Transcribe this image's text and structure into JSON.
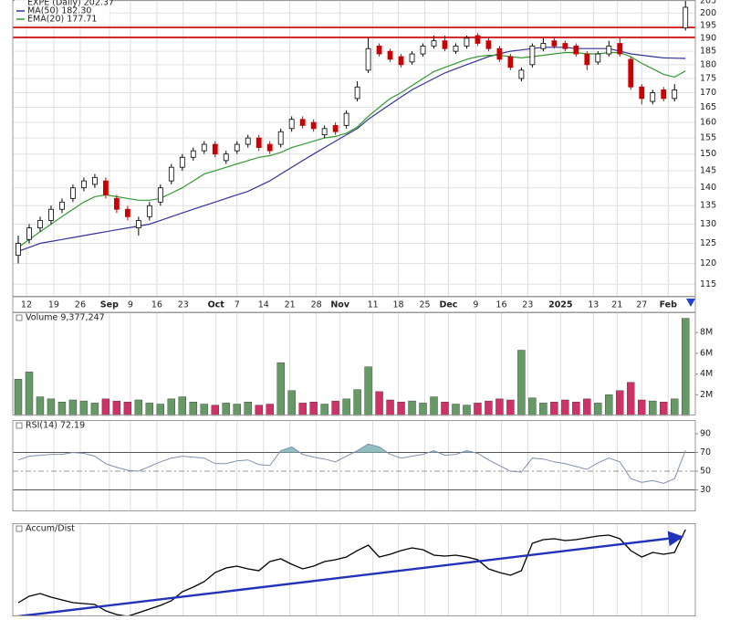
{
  "chart_data": [
    {
      "type": "candlestick",
      "title": "EXPE (Daily) 202.37",
      "xlim": [
        -0.5,
        61.9
      ],
      "xticks": [
        {
          "value": 0.75,
          "label": "12"
        },
        {
          "value": 3.25,
          "label": "19"
        },
        {
          "value": 5.67,
          "label": "26"
        },
        {
          "value": 8.33,
          "label": "Sep"
        },
        {
          "value": 10.25,
          "label": "9"
        },
        {
          "value": 12.67,
          "label": "16"
        },
        {
          "value": 15.08,
          "label": "23"
        },
        {
          "value": 18.08,
          "label": "Oct"
        },
        {
          "value": 20,
          "label": "7"
        },
        {
          "value": 22.42,
          "label": "14"
        },
        {
          "value": 24.83,
          "label": "21"
        },
        {
          "value": 27.25,
          "label": "28"
        },
        {
          "value": 29.42,
          "label": "Nov"
        },
        {
          "value": 32.42,
          "label": "11"
        },
        {
          "value": 34.75,
          "label": "18"
        },
        {
          "value": 37.17,
          "label": "25"
        },
        {
          "value": 39.33,
          "label": "Dec"
        },
        {
          "value": 41.83,
          "label": "9"
        },
        {
          "value": 44.17,
          "label": "16"
        },
        {
          "value": 46.58,
          "label": "23"
        },
        {
          "value": 49.58,
          "label": "2025"
        },
        {
          "value": 52.58,
          "label": "13"
        },
        {
          "value": 54.75,
          "label": "21"
        },
        {
          "value": 57,
          "label": "27"
        },
        {
          "value": 59.42,
          "label": "Feb"
        }
      ],
      "ylim": [
        112.1,
        205.4
      ],
      "log": true,
      "yticks": [
        115,
        120,
        125,
        130,
        135,
        140,
        145,
        150,
        155,
        160,
        165,
        170,
        175,
        180,
        185,
        190,
        195,
        200,
        205
      ],
      "grid": true,
      "up_color": "#000000",
      "down_color": "#cc0000",
      "open": [
        122,
        126,
        129,
        131,
        134,
        137,
        140,
        141,
        142,
        137,
        134,
        129,
        132,
        136,
        142,
        146,
        149,
        151,
        153,
        148,
        151,
        153,
        155,
        153,
        153,
        158,
        161,
        160,
        156,
        159,
        159,
        168,
        178,
        187,
        185,
        183,
        181,
        184,
        187,
        189,
        185,
        187,
        191,
        189,
        186,
        183,
        175,
        180,
        186,
        189,
        188,
        187,
        184,
        181,
        184,
        188,
        182,
        172,
        167,
        171,
        168,
        194
      ],
      "high": [
        127,
        130,
        132,
        135,
        137,
        141,
        143,
        144,
        143,
        138,
        135,
        132,
        136,
        141,
        147,
        150,
        152,
        154,
        154,
        151,
        154,
        156,
        156,
        154,
        158,
        162,
        162,
        161,
        159,
        160,
        164,
        174,
        190,
        188,
        186,
        184,
        185,
        188,
        191,
        191,
        188,
        191,
        192,
        190,
        187,
        184,
        179,
        188,
        190,
        190,
        189,
        188,
        185,
        185,
        189,
        190,
        183,
        173,
        171,
        172,
        173,
        205
      ],
      "low": [
        120,
        125,
        128,
        130,
        133,
        136,
        139,
        140,
        137,
        133,
        131,
        127,
        131,
        135,
        141,
        145,
        148,
        150,
        149,
        147,
        150,
        152,
        151,
        150,
        152,
        157,
        158,
        157,
        155,
        156,
        158,
        167,
        177,
        183,
        181,
        179,
        180,
        183,
        186,
        185,
        184,
        186,
        187,
        185,
        181,
        178,
        174,
        179,
        185,
        186,
        185,
        183,
        178,
        180,
        183,
        183,
        171,
        166,
        166,
        167,
        167,
        193
      ],
      "close": [
        125,
        129,
        131,
        134,
        136,
        140,
        142,
        143,
        138,
        134,
        132,
        131,
        135,
        140,
        146,
        149,
        151,
        153,
        150,
        150,
        153,
        155,
        152,
        151,
        157,
        161,
        159,
        158,
        158,
        157,
        163,
        172,
        186,
        184,
        182,
        180,
        184,
        187,
        189,
        186,
        187,
        190,
        188,
        186,
        182,
        179,
        178,
        187,
        188,
        187,
        186,
        184,
        180,
        184,
        187,
        184,
        172,
        168,
        170,
        168,
        171,
        202.37
      ],
      "series": [
        {
          "name": "MA(50) 182.30",
          "color": "#333399",
          "values": [
            123,
            124,
            125,
            125.5,
            126,
            126.5,
            127,
            127.5,
            128,
            128.5,
            129,
            129.5,
            130,
            131,
            132,
            133,
            134,
            135,
            136,
            137,
            138,
            139,
            140.5,
            142,
            144,
            146,
            148,
            150,
            152,
            154,
            156,
            158,
            161,
            163.5,
            166,
            168.5,
            171,
            173,
            175,
            177,
            178.5,
            180,
            181.5,
            183,
            184,
            185,
            185.5,
            186,
            186.5,
            186.5,
            186.5,
            186,
            186,
            186,
            186,
            185,
            184,
            183.5,
            183,
            182.5,
            182.4,
            182.3
          ]
        },
        {
          "name": "EMA(20) 177.71",
          "color": "#339933",
          "values": [
            124,
            126,
            128,
            130,
            132,
            134,
            136,
            137.5,
            138,
            137.5,
            137,
            136.5,
            136.5,
            137,
            138.5,
            140,
            142,
            144,
            145,
            146,
            147,
            148,
            149,
            149.5,
            150.5,
            152,
            153,
            154,
            155,
            155.5,
            156.5,
            158.5,
            162,
            165,
            168,
            170,
            172.5,
            175,
            177.5,
            179,
            180.5,
            182,
            183,
            183.5,
            183.5,
            183,
            182.5,
            183,
            183.5,
            184,
            184.5,
            184.5,
            184,
            184,
            184.5,
            184.5,
            183,
            180.5,
            178.5,
            176.5,
            175.5,
            177.71
          ]
        }
      ],
      "hlines": [
        {
          "value": 194.2,
          "color": "#cc0000"
        },
        {
          "value": 190.3,
          "color": "#cc0000"
        }
      ]
    },
    {
      "type": "bar",
      "title": "Volume 9,377,247",
      "ylim": [
        0,
        9.87
      ],
      "yticks": [
        {
          "value": 2,
          "label": "2M"
        },
        {
          "value": 4,
          "label": "4M"
        },
        {
          "value": 6,
          "label": "6M"
        },
        {
          "value": 8,
          "label": "8M"
        }
      ],
      "up_color": "#669966",
      "down_color": "#cc3366",
      "values": [
        3.5,
        4.2,
        1.8,
        1.6,
        1.3,
        1.5,
        1.4,
        1.2,
        1.6,
        1.4,
        1.3,
        1.5,
        1.2,
        1.1,
        1.6,
        1.8,
        1.3,
        1.1,
        1.0,
        1.2,
        1.1,
        1.3,
        1.0,
        1.1,
        5.1,
        2.4,
        1.2,
        1.3,
        1.1,
        1.4,
        1.6,
        2.5,
        4.7,
        2.3,
        1.5,
        1.3,
        1.4,
        1.2,
        1.8,
        1.3,
        1.1,
        1.0,
        1.2,
        1.4,
        1.6,
        1.5,
        6.3,
        1.7,
        1.2,
        1.3,
        1.5,
        1.3,
        1.6,
        1.2,
        2.0,
        2.4,
        3.2,
        1.5,
        1.4,
        1.3,
        1.6,
        9.377247
      ]
    },
    {
      "type": "line",
      "title": "RSI(14) 72.19",
      "ylim": [
        7.1,
        102.7
      ],
      "yticks": [
        30,
        50,
        70,
        90
      ],
      "color": "#8090b0",
      "fill_color": "#8fbfbf",
      "levels": [
        30,
        50,
        70
      ],
      "values": [
        62,
        66,
        67,
        68,
        68,
        70,
        69,
        66,
        58,
        54,
        51,
        50,
        55,
        60,
        64,
        66,
        65,
        64,
        58,
        58,
        61,
        62,
        57,
        56,
        72,
        76,
        68,
        65,
        63,
        60,
        66,
        72,
        79,
        76,
        68,
        64,
        66,
        68,
        72,
        67,
        68,
        72,
        69,
        62,
        56,
        50,
        49,
        64,
        63,
        60,
        58,
        55,
        52,
        59,
        64,
        60,
        42,
        38,
        40,
        37,
        42,
        72.19
      ]
    },
    {
      "type": "line",
      "title": "Accum/Dist",
      "ylim": [
        0,
        100
      ],
      "color": "#000000",
      "values": [
        15,
        22,
        25,
        21,
        18,
        15,
        14,
        13,
        6,
        2,
        0,
        4,
        8,
        12,
        17,
        27,
        32,
        38,
        48,
        53,
        55,
        52,
        50,
        60,
        63,
        57,
        52,
        55,
        60,
        62,
        65,
        72,
        78,
        65,
        68,
        72,
        75,
        73,
        67,
        66,
        67,
        65,
        62,
        52,
        48,
        45,
        50,
        80,
        84,
        85,
        83,
        84,
        86,
        88,
        89,
        85,
        72,
        65,
        70,
        68,
        70,
        95
      ],
      "trendline": {
        "x": [
          0,
          60.7
        ],
        "values": [
          0,
          87
        ],
        "color": "#2233bb"
      }
    }
  ]
}
